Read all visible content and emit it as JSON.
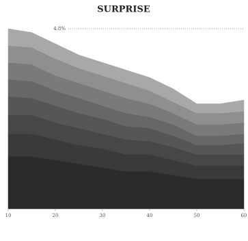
{
  "chart_data": {
    "type": "stacked_area",
    "title": "SURPRISE",
    "x": [
      10,
      15,
      20,
      25,
      30,
      35,
      40,
      45,
      50,
      55,
      60
    ],
    "series": [
      {
        "color": "#2b2b2b",
        "values": [
          1.4,
          1.4,
          1.3,
          1.2,
          1.1,
          1.0,
          1.0,
          0.9,
          0.8,
          0.8,
          0.8
        ]
      },
      {
        "color": "#3a3a3a",
        "values": [
          0.6,
          0.6,
          0.55,
          0.5,
          0.5,
          0.45,
          0.45,
          0.4,
          0.35,
          0.35,
          0.35
        ]
      },
      {
        "color": "#474747",
        "values": [
          0.5,
          0.5,
          0.45,
          0.45,
          0.4,
          0.4,
          0.35,
          0.35,
          0.3,
          0.3,
          0.3
        ]
      },
      {
        "color": "#565656",
        "values": [
          0.5,
          0.45,
          0.45,
          0.4,
          0.4,
          0.35,
          0.35,
          0.3,
          0.25,
          0.25,
          0.3
        ]
      },
      {
        "color": "#676767",
        "values": [
          0.45,
          0.45,
          0.4,
          0.4,
          0.35,
          0.35,
          0.3,
          0.3,
          0.25,
          0.25,
          0.25
        ]
      },
      {
        "color": "#7a7a7a",
        "values": [
          0.45,
          0.45,
          0.4,
          0.4,
          0.4,
          0.4,
          0.35,
          0.3,
          0.3,
          0.3,
          0.3
        ]
      },
      {
        "color": "#8f8f8f",
        "values": [
          0.45,
          0.45,
          0.45,
          0.4,
          0.4,
          0.4,
          0.35,
          0.3,
          0.3,
          0.3,
          0.3
        ]
      },
      {
        "color": "#a8a8a8",
        "values": [
          0.45,
          0.4,
          0.4,
          0.35,
          0.35,
          0.35,
          0.35,
          0.35,
          0.25,
          0.25,
          0.3
        ]
      }
    ],
    "xlim": [
      10,
      60
    ],
    "xticks": [
      10,
      20,
      30,
      40,
      50,
      60
    ],
    "ylim": [
      0,
      5
    ],
    "reference_line": {
      "value": 4.8,
      "label": "4.8%"
    }
  }
}
